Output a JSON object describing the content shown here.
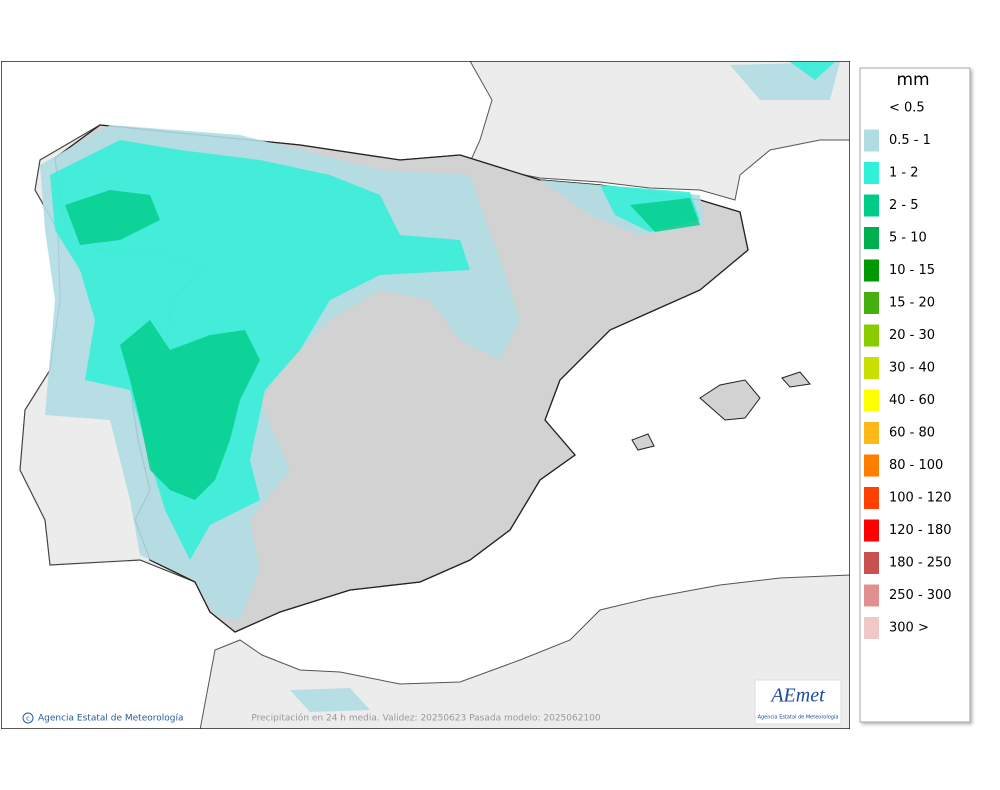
{
  "map": {
    "footer_credit": "Agencia Estatal de Meteorología",
    "footer_caption": "Precipitación en 24 h media. Validez: 20250623 Pasada modelo: 2025062100",
    "logo": {
      "name": "AEmet",
      "subtitle": "Agencia Estatal de Meteorología"
    }
  },
  "legend": {
    "title": "mm",
    "items": [
      {
        "label": "< 0.5",
        "color": null
      },
      {
        "label": "0.5 - 1",
        "color": "#b0dde3"
      },
      {
        "label": "1 - 2",
        "color": "#30f0d8"
      },
      {
        "label": "2 - 5",
        "color": "#00cc88"
      },
      {
        "label": "5 - 10",
        "color": "#00b050"
      },
      {
        "label": "10 - 15",
        "color": "#009a00"
      },
      {
        "label": "15 - 20",
        "color": "#44b010"
      },
      {
        "label": "20 - 30",
        "color": "#88cc00"
      },
      {
        "label": "30 - 40",
        "color": "#c8e000"
      },
      {
        "label": "40 - 60",
        "color": "#ffff00"
      },
      {
        "label": "60 - 80",
        "color": "#ffb818"
      },
      {
        "label": "80 - 100",
        "color": "#ff7e00"
      },
      {
        "label": "100 - 120",
        "color": "#ff4000"
      },
      {
        "label": "120 - 180",
        "color": "#ff0000"
      },
      {
        "label": "180 - 250",
        "color": "#c85050"
      },
      {
        "label": "250 - 300",
        "color": "#e09090"
      },
      {
        "label": "300 >",
        "color": "#f0c8c8"
      }
    ]
  }
}
